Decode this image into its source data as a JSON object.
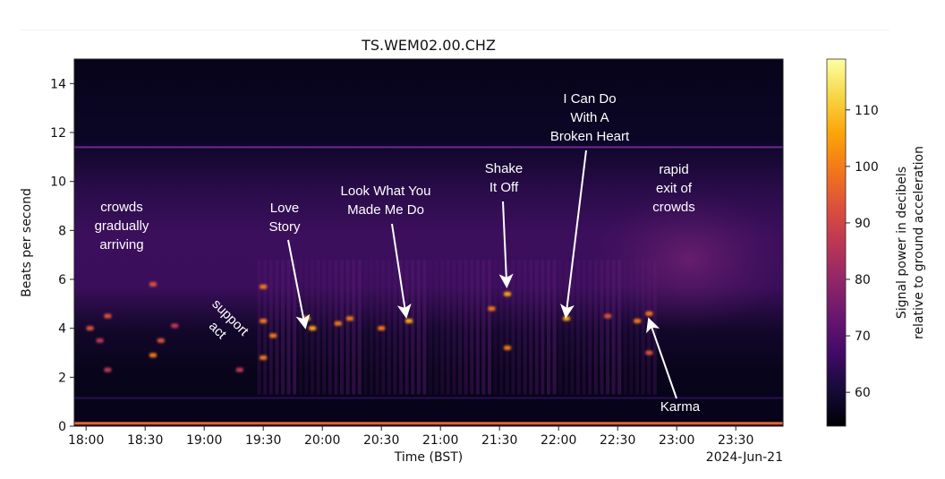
{
  "chart_data": {
    "type": "heatmap",
    "subtype": "spectrogram",
    "title": "TS.WEM02.00.CHZ",
    "xlabel": "Time (BST)",
    "ylabel": "Beats per second",
    "x_offset_label": "2024-Jun-21",
    "x_ticks": [
      "18:00",
      "18:30",
      "19:00",
      "19:30",
      "20:00",
      "20:30",
      "21:00",
      "21:30",
      "22:00",
      "22:30",
      "23:00",
      "23:30"
    ],
    "xlim": [
      "17:54",
      "23:54"
    ],
    "y_ticks": [
      0,
      2,
      4,
      6,
      8,
      10,
      12,
      14
    ],
    "ylim": [
      0,
      15
    ],
    "colorbar": {
      "label_line1": "Signal power in decibels",
      "label_line2": "relative to ground acceleration",
      "ticks": [
        60,
        70,
        80,
        90,
        100,
        110
      ],
      "range": [
        54,
        119
      ],
      "colormap": "inferno"
    },
    "persistent_lines_bps": [
      11.4,
      1.15,
      0.1
    ],
    "annotations": [
      {
        "text": "crowds gradually arriving",
        "lines": [
          "crowds",
          "gradually",
          "arriving"
        ],
        "time": "18:20",
        "bps": 8.2,
        "arrow": false
      },
      {
        "text": "support act",
        "lines": [
          "support",
          "act"
        ],
        "time": "19:05",
        "bps": 3.8,
        "arrow": false,
        "rotation": 45
      },
      {
        "text": "Love Story",
        "lines": [
          "Love",
          "Story"
        ],
        "time": "19:52",
        "bps": 4.4,
        "arrow": true
      },
      {
        "text": "Look What You Made Me Do",
        "lines": [
          "Look What You",
          "Made Me Do"
        ],
        "time": "20:44",
        "bps": 4.3,
        "arrow": true
      },
      {
        "text": "Shake It Off",
        "lines": [
          "Shake",
          "It Off"
        ],
        "time": "21:34",
        "bps": 5.4,
        "arrow": true
      },
      {
        "text": "I Can Do With A Broken Heart",
        "lines": [
          "I Can Do",
          "With A",
          "Broken Heart"
        ],
        "time": "22:04",
        "bps": 4.4,
        "arrow": true
      },
      {
        "text": "rapid exit of crowds",
        "lines": [
          "rapid",
          "exit of",
          "crowds"
        ],
        "time": "23:00",
        "bps": 8.5,
        "arrow": false
      },
      {
        "text": "Karma",
        "lines": [
          "Karma"
        ],
        "time": "22:46",
        "bps": 4.3,
        "arrow": true
      }
    ],
    "peak_events": [
      {
        "time": "18:02",
        "bps": 4.0,
        "db": 90
      },
      {
        "time": "18:07",
        "bps": 3.5,
        "db": 85
      },
      {
        "time": "18:11",
        "bps": 4.5,
        "db": 96
      },
      {
        "time": "18:11",
        "bps": 2.3,
        "db": 85
      },
      {
        "time": "18:34",
        "bps": 5.8,
        "db": 96
      },
      {
        "time": "18:34",
        "bps": 2.9,
        "db": 98
      },
      {
        "time": "18:38",
        "bps": 3.5,
        "db": 92
      },
      {
        "time": "18:45",
        "bps": 4.1,
        "db": 88
      },
      {
        "time": "19:18",
        "bps": 2.3,
        "db": 86
      },
      {
        "time": "19:30",
        "bps": 5.7,
        "db": 98
      },
      {
        "time": "19:30",
        "bps": 4.3,
        "db": 100
      },
      {
        "time": "19:30",
        "bps": 2.8,
        "db": 98
      },
      {
        "time": "19:35",
        "bps": 3.7,
        "db": 100
      },
      {
        "time": "19:52",
        "bps": 4.4,
        "db": 108
      },
      {
        "time": "19:55",
        "bps": 4.0,
        "db": 104
      },
      {
        "time": "20:08",
        "bps": 4.2,
        "db": 100
      },
      {
        "time": "20:14",
        "bps": 4.4,
        "db": 100
      },
      {
        "time": "20:30",
        "bps": 4.0,
        "db": 102
      },
      {
        "time": "20:44",
        "bps": 4.3,
        "db": 106
      },
      {
        "time": "21:26",
        "bps": 4.8,
        "db": 100
      },
      {
        "time": "21:34",
        "bps": 5.4,
        "db": 108
      },
      {
        "time": "21:34",
        "bps": 3.2,
        "db": 100
      },
      {
        "time": "22:04",
        "bps": 4.4,
        "db": 108
      },
      {
        "time": "22:25",
        "bps": 4.5,
        "db": 96
      },
      {
        "time": "22:40",
        "bps": 4.3,
        "db": 98
      },
      {
        "time": "22:46",
        "bps": 4.6,
        "db": 100
      },
      {
        "time": "22:46",
        "bps": 3.0,
        "db": 96
      }
    ]
  }
}
